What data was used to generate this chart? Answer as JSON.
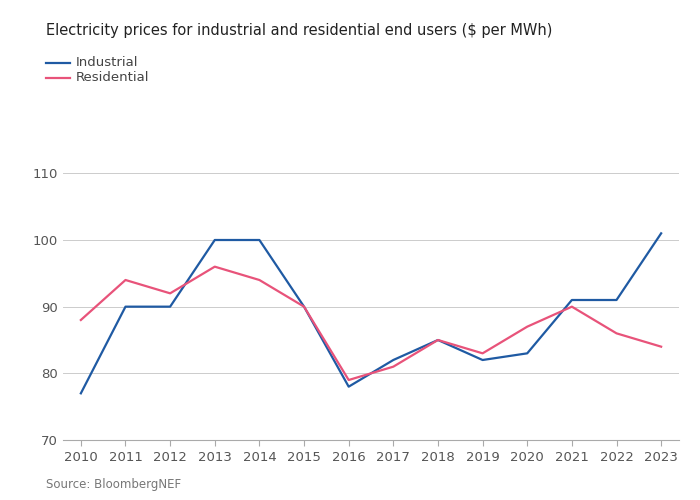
{
  "title": "Electricity prices for industrial and residential end users ($ per MWh)",
  "source": "Source: BloombergNEF",
  "years": [
    2010,
    2011,
    2012,
    2013,
    2014,
    2015,
    2016,
    2017,
    2018,
    2019,
    2020,
    2021,
    2022,
    2023
  ],
  "industrial": [
    77,
    90,
    90,
    100,
    100,
    90,
    78,
    82,
    85,
    82,
    83,
    91,
    91,
    101
  ],
  "residential": [
    88,
    94,
    92,
    96,
    94,
    90,
    79,
    81,
    85,
    83,
    87,
    90,
    86,
    84
  ],
  "industrial_color": "#1f5aa3",
  "residential_color": "#e8537a",
  "ylim": [
    70,
    115
  ],
  "yticks": [
    70,
    80,
    90,
    100,
    110
  ],
  "background_color": "#ffffff",
  "grid_color": "#cccccc",
  "title_fontsize": 10.5,
  "tick_fontsize": 9.5,
  "legend_fontsize": 9.5,
  "source_fontsize": 8.5,
  "legend_labels": [
    "Industrial",
    "Residential"
  ],
  "line_width": 1.6
}
